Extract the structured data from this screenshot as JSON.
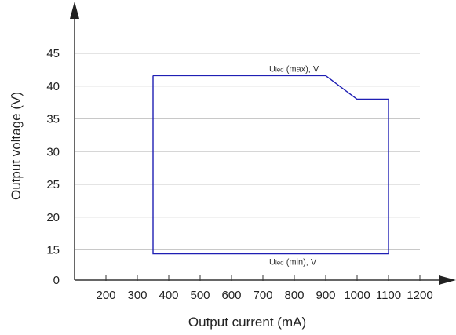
{
  "chart_data": {
    "type": "line",
    "xlabel": "Output current (mA)",
    "ylabel": "Output voltage (V)",
    "x_ticks": [
      200,
      300,
      400,
      500,
      600,
      700,
      800,
      900,
      1000,
      1100,
      1200
    ],
    "y_ticks": [
      0,
      15,
      20,
      25,
      30,
      35,
      40,
      45
    ],
    "xlim": [
      100,
      1200
    ],
    "y_break": true,
    "grid": "horizontal",
    "series": [
      {
        "color": "#1f1fb4",
        "points": [
          {
            "x": 350,
            "y": 41.6
          },
          {
            "x": 900,
            "y": 41.6
          },
          {
            "x": 1000,
            "y": 38.0
          },
          {
            "x": 1100,
            "y": 38.0
          },
          {
            "x": 1100,
            "y": 14.4
          },
          {
            "x": 350,
            "y": 14.4
          },
          {
            "x": 350,
            "y": 41.6
          }
        ]
      }
    ],
    "annotations": [
      {
        "main": "U",
        "sub": "led",
        "suffix": " (max), V",
        "x": 800,
        "y": 41.6,
        "position": "above"
      },
      {
        "main": "U",
        "sub": "led",
        "suffix": " (min), V",
        "x": 800,
        "y": 14.4,
        "position": "below"
      }
    ]
  }
}
